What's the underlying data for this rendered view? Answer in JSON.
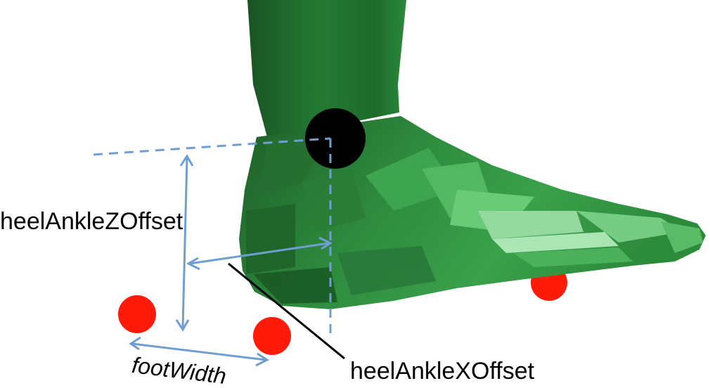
{
  "labels": {
    "heel_ankle_z_offset": "heelAnkleZOffset",
    "heel_ankle_x_offset": "heelAnkleXOffset",
    "foot_width": "footWidth"
  },
  "colors": {
    "foot_green": "#2e8b3e",
    "foot_dark": "#1d5c27",
    "foot_highlight": "#9ee0a8",
    "ankle_marker": "#000000",
    "heel_markers": "#ff1a0a",
    "dimension_lines": "#6f9fd0",
    "leader_line": "#000000"
  }
}
